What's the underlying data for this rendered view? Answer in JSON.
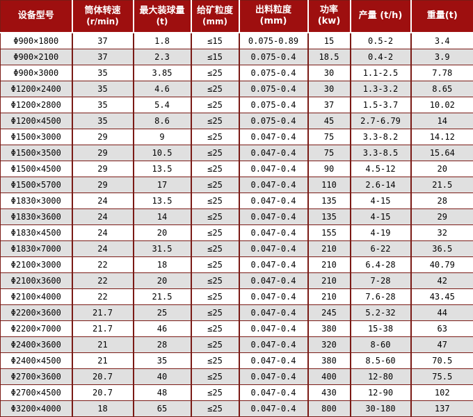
{
  "colors": {
    "header_bg": "#9e0f0f",
    "border": "#7a1a15",
    "stripe": "#e0e0e0",
    "header_text": "#ffffff"
  },
  "table": {
    "columns": [
      {
        "label": "设备型号",
        "sub": ""
      },
      {
        "label": "筒体转速",
        "sub": "(r/min)"
      },
      {
        "label": "最大装球量",
        "sub": "(t)"
      },
      {
        "label": "给矿粒度",
        "sub": "(mm)"
      },
      {
        "label": "出料粒度 (mm)",
        "sub": ""
      },
      {
        "label": "功率 (kw)",
        "sub": ""
      },
      {
        "label": "产量 (t/h)",
        "sub": ""
      },
      {
        "label": "重量(t)",
        "sub": ""
      }
    ],
    "rows": [
      [
        "Φ900×1800",
        "37",
        "1.8",
        "≤15",
        "0.075-0.89",
        "15",
        "0.5-2",
        "3.4"
      ],
      [
        "Φ900×2100",
        "37",
        "2.3",
        "≤15",
        "0.075-0.4",
        "18.5",
        "0.4-2",
        "3.9"
      ],
      [
        "Φ900×3000",
        "35",
        "3.85",
        "≤25",
        "0.075-0.4",
        "30",
        "1.1-2.5",
        "7.78"
      ],
      [
        "Φ1200×2400",
        "35",
        "4.6",
        "≤25",
        "0.075-0.4",
        "30",
        "1.3-3.2",
        "8.65"
      ],
      [
        "Φ1200×2800",
        "35",
        "5.4",
        "≤25",
        "0.075-0.4",
        "37",
        "1.5-3.7",
        "10.02"
      ],
      [
        "Φ1200×4500",
        "35",
        "8.6",
        "≤25",
        "0.075-0.4",
        "45",
        "2.7-6.79",
        "14"
      ],
      [
        "Φ1500×3000",
        "29",
        "9",
        "≤25",
        "0.047-0.4",
        "75",
        "3.3-8.2",
        "14.12"
      ],
      [
        "Φ1500×3500",
        "29",
        "10.5",
        "≤25",
        "0.047-0.4",
        "75",
        "3.3-8.5",
        "15.64"
      ],
      [
        "Φ1500×4500",
        "29",
        "13.5",
        "≤25",
        "0.047-0.4",
        "90",
        "4.5-12",
        "20"
      ],
      [
        "Φ1500×5700",
        "29",
        "17",
        "≤25",
        "0.047-0.4",
        "110",
        "2.6-14",
        "21.5"
      ],
      [
        "Φ1830×3000",
        "24",
        "13.5",
        "≤25",
        "0.047-0.4",
        "135",
        "4-15",
        "28"
      ],
      [
        "Φ1830×3600",
        "24",
        "14",
        "≤25",
        "0.047-0.4",
        "135",
        "4-15",
        "29"
      ],
      [
        "Φ1830×4500",
        "24",
        "20",
        "≤25",
        "0.047-0.4",
        "155",
        "4-19",
        "32"
      ],
      [
        "Φ1830×7000",
        "24",
        "31.5",
        "≤25",
        "0.047-0.4",
        "210",
        "6-22",
        "36.5"
      ],
      [
        "Φ2100×3000",
        "22",
        "18",
        "≤25",
        "0.047-0.4",
        "210",
        "6.4-28",
        "40.79"
      ],
      [
        "Φ2100x3600",
        "22",
        "20",
        "≤25",
        "0.047-0.4",
        "210",
        "7-28",
        "42"
      ],
      [
        "Φ2100×4000",
        "22",
        "21.5",
        "≤25",
        "0.047-0.4",
        "210",
        "7.6-28",
        "43.45"
      ],
      [
        "Φ2200×3600",
        "21.7",
        "25",
        "≤25",
        "0.047-0.4",
        "245",
        "5.2-32",
        "44"
      ],
      [
        "Φ2200×7000",
        "21.7",
        "46",
        "≤25",
        "0.047-0.4",
        "380",
        "15-38",
        "63"
      ],
      [
        "Φ2400×3600",
        "21",
        "28",
        "≤25",
        "0.047-0.4",
        "320",
        "8-60",
        "47"
      ],
      [
        "Φ2400×4500",
        "21",
        "35",
        "≤25",
        "0.047-0.4",
        "380",
        "8.5-60",
        "70.5"
      ],
      [
        "Φ2700×3600",
        "20.7",
        "40",
        "≤25",
        "0.047-0.4",
        "400",
        "12-80",
        "75.5"
      ],
      [
        "Φ2700×4500",
        "20.7",
        "48",
        "≤25",
        "0.047-0.4",
        "430",
        "12-90",
        "102"
      ],
      [
        "Φ3200×4000",
        "18",
        "65",
        "≤25",
        "0.047-0.4",
        "800",
        "30-180",
        "137"
      ]
    ]
  }
}
